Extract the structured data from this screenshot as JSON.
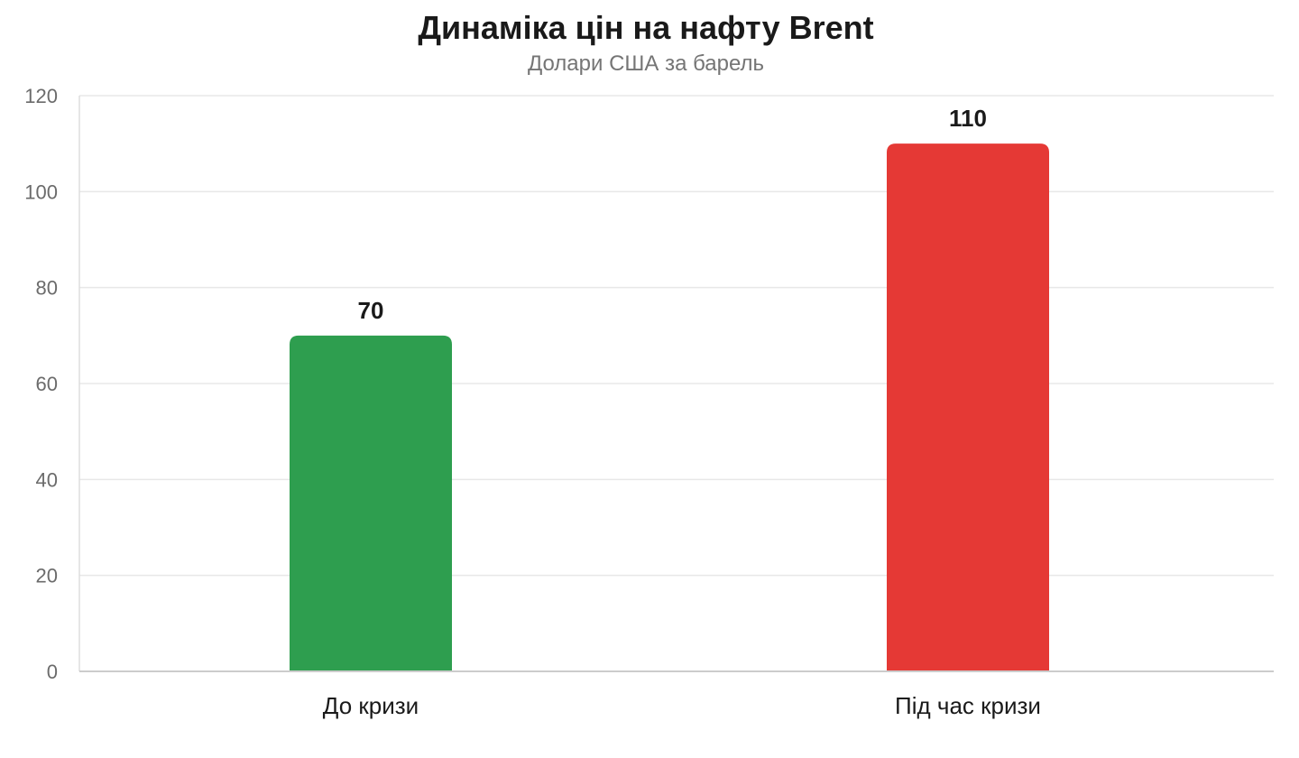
{
  "chart_data": {
    "type": "bar",
    "title": "Динаміка цін на нафту Brent",
    "subtitle": "Долари США за барель",
    "categories": [
      "До кризи",
      "Під час кризи"
    ],
    "values": [
      70,
      110
    ],
    "colors": [
      "#2e9e4f",
      "#e53935"
    ],
    "ylim": [
      0,
      120
    ],
    "yticks": [
      0,
      20,
      40,
      60,
      80,
      100,
      120
    ],
    "grid": true,
    "legend": "none"
  }
}
